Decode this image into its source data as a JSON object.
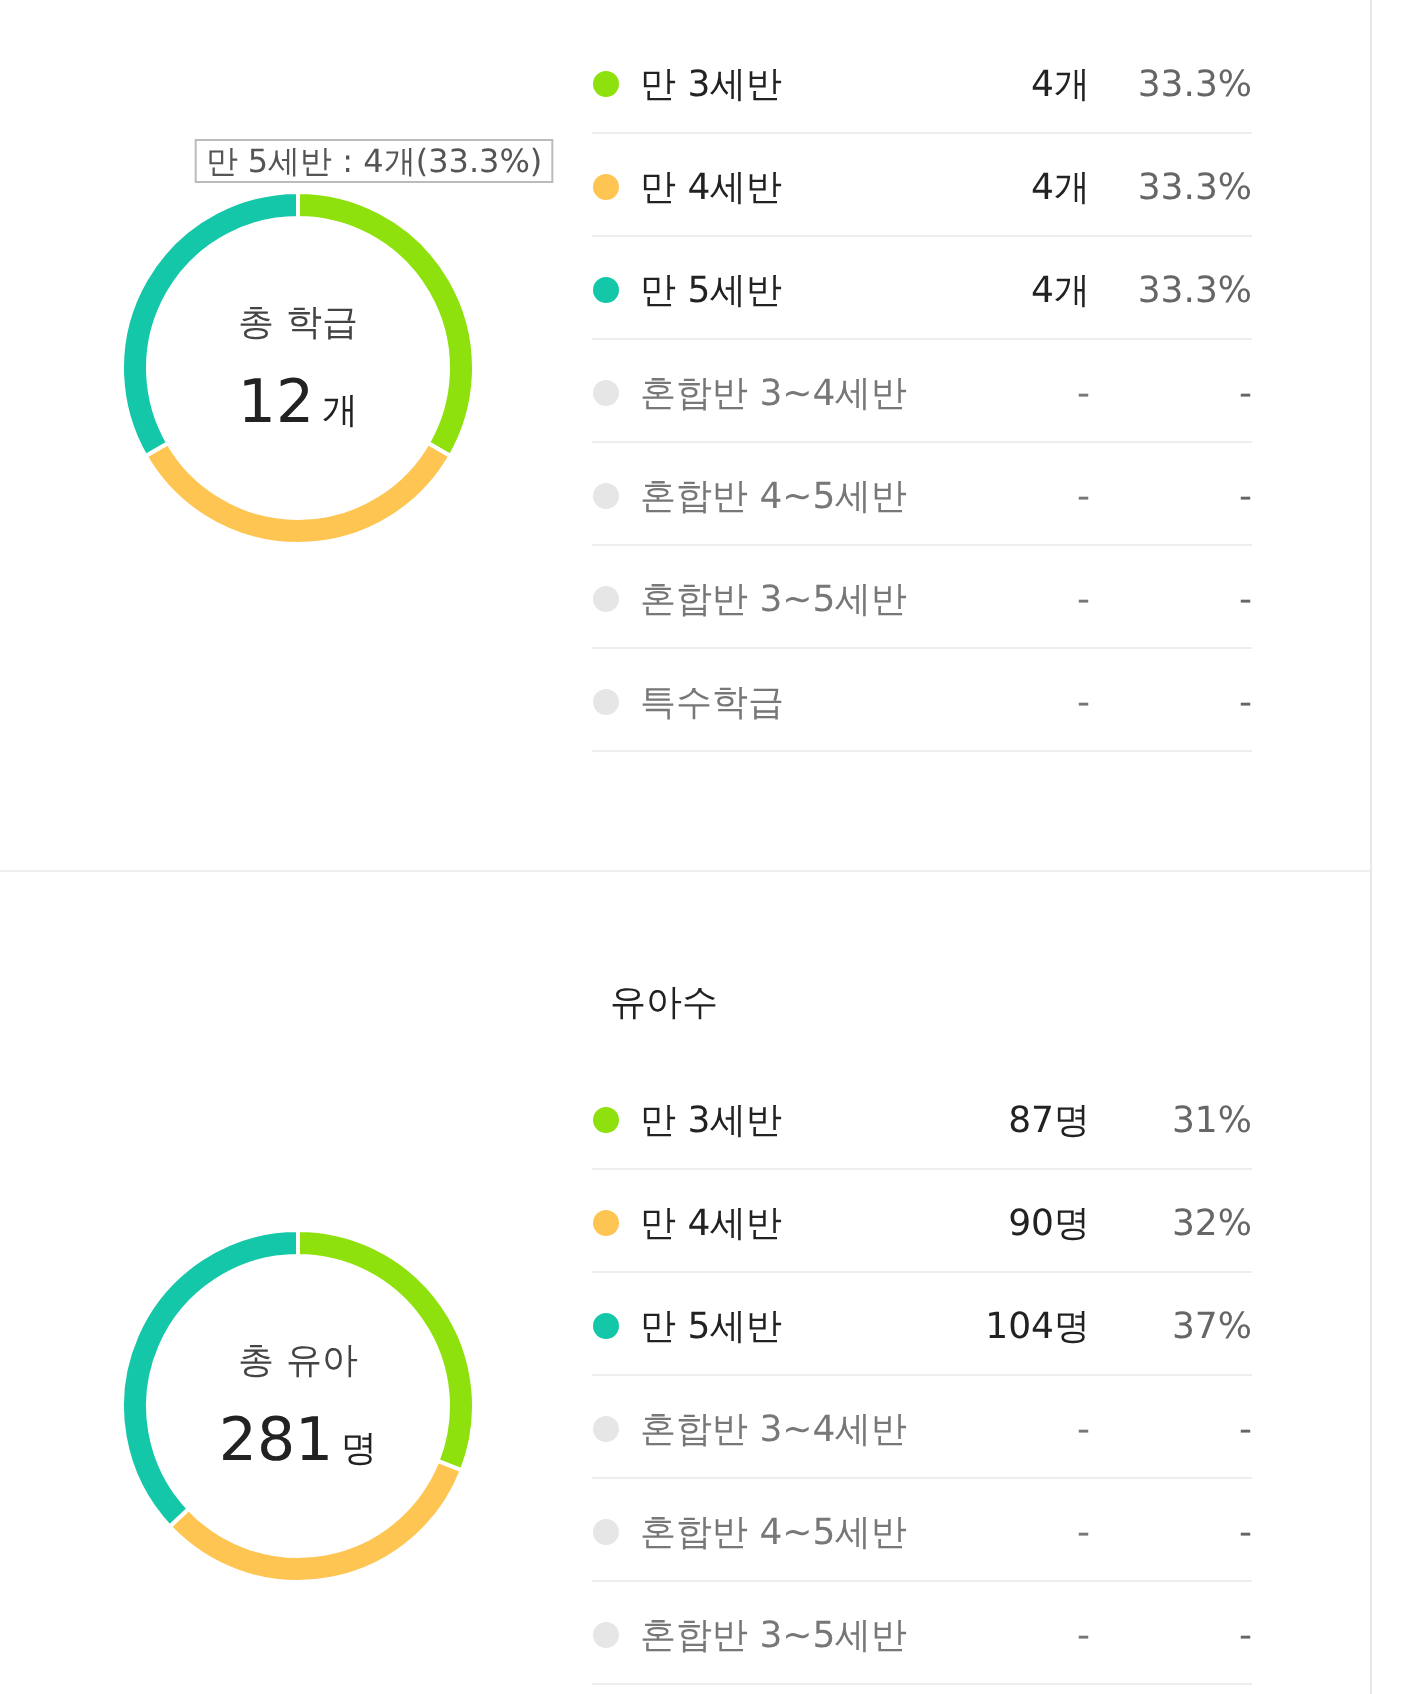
{
  "chart_data": [
    {
      "type": "donut",
      "legend": "right",
      "categories": [
        "만 3세반",
        "만 4세반",
        "만 5세반",
        "혼합반 3~4세반",
        "혼합반 4~5세반",
        "혼합반 3~5세반",
        "특수학급"
      ],
      "values": [
        4,
        4,
        4,
        null,
        null,
        null,
        null
      ],
      "colors": [
        "#8ee10c",
        "#ffc552",
        "#14c7a9",
        "#e6e6e6",
        "#e6e6e6",
        "#e6e6e6",
        "#e6e6e6"
      ],
      "value_labels": [
        "4개",
        "4개",
        "4개",
        "-",
        "-",
        "-",
        "-"
      ],
      "annotations": [
        "총 학급",
        "12",
        "개",
        "만 5세반 : 4개(33.3%)",
        {
          "text": "33.3%",
          "x": "만 3세반"
        },
        {
          "text": "33.3%",
          "x": "만 4세반"
        },
        {
          "text": "33.3%",
          "x": "만 5세반"
        },
        {
          "text": "-",
          "x": "혼합반 3~4세반"
        },
        {
          "text": "-",
          "x": "혼합반 4~5세반"
        },
        {
          "text": "-",
          "x": "혼합반 3~5세반"
        },
        {
          "text": "-",
          "x": "특수학급"
        }
      ]
    },
    {
      "type": "donut",
      "legend": "right",
      "title": "유아수",
      "categories": [
        "만 3세반",
        "만 4세반",
        "만 5세반",
        "혼합반 3~4세반",
        "혼합반 4~5세반",
        "혼합반 3~5세반"
      ],
      "values": [
        87,
        90,
        104,
        null,
        null,
        null
      ],
      "colors": [
        "#8ee10c",
        "#ffc552",
        "#14c7a9",
        "#e6e6e6",
        "#e6e6e6",
        "#e6e6e6"
      ],
      "value_labels": [
        "87명",
        "90명",
        "104명",
        "-",
        "-",
        "-"
      ],
      "annotations": [
        "총 유아",
        "281",
        "명",
        {
          "text": "31%",
          "x": "만 3세반"
        },
        {
          "text": "32%",
          "x": "만 4세반"
        },
        {
          "text": "37%",
          "x": "만 5세반"
        },
        {
          "text": "-",
          "x": "혼합반 3~4세반"
        },
        {
          "text": "-",
          "x": "혼합반 4~5세반"
        },
        {
          "text": "-",
          "x": "혼합반 3~5세반"
        }
      ]
    }
  ]
}
